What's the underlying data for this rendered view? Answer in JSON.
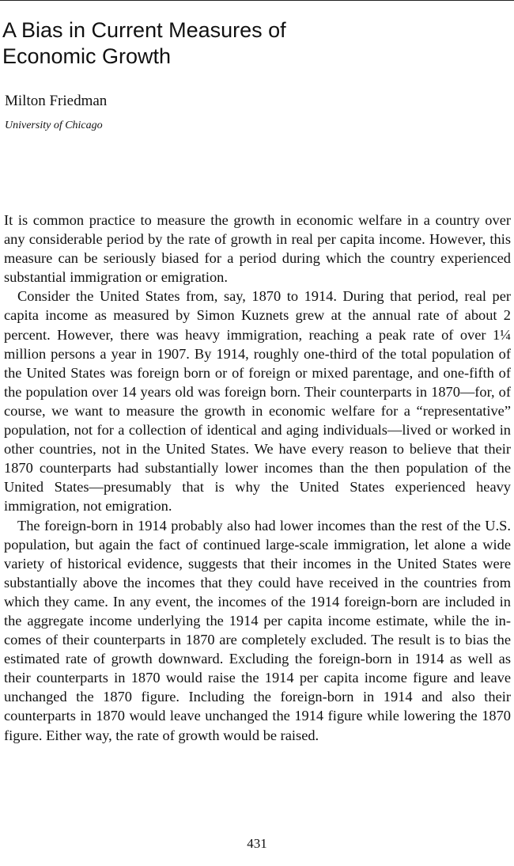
{
  "article": {
    "title_line1": "A Bias in Current Measures of",
    "title_line2": "Economic Growth",
    "author": "Milton Friedman",
    "affiliation": "University of Chicago"
  },
  "paragraphs": [
    "It is common practice to measure the growth in economic welfare in a country over any considerable period by the rate of growth in real per capita income. However, this measure can be seriously biased for a period during which the country experienced substantial immigration or emigra­tion.",
    "Consider the United States from, say, 1870 to 1914. During that period, real per capita income as measured by Simon Kuznets grew at the annual rate of about 2 percent. However, there was heavy immigration, reaching a peak rate of over 1¼ million persons a year in 1907. By 1914, roughly one-third of the total population of the United States was foreign born or of foreign or mixed parentage, and one-fifth of the population over 14 years old was foreign born. Their counterparts in 1870—for, of course, we want to measure the growth in economic welfare for a “representative” population, not for a collection of identical and aging individuals—lived or worked in other countries, not in the United States. We have every reason to believe that their 1870 counterparts had substantially lower incomes than the then population of the United States—presumably that is why the United States experienced heavy immigration, not emigration.",
    "The foreign-born in 1914 probably also had lower incomes than the rest of the U.S. population, but again the fact of continued large-scale immi­gration, let alone a wide variety of historical evidence, suggests that their incomes in the United States were substantially above the incomes that they could have received in the countries from which they came. In any event, the incomes of the 1914 foreign-born are included in the aggregate income underlying the 1914 per capita income estimate, while the in­comes of their counterparts in 1870 are completely excluded. The result is to bias the estimated rate of growth downward. Excluding the foreign-born in 1914 as well as their counterparts in 1870 would raise the 1914 per capita income figure and leave unchanged the 1870 figure. Including the foreign-born in 1914 and also their counterparts in 1870 would leave unchanged the 1914 figure while lowering the 1870 figure. Either way, the rate of growth would be raised."
  ],
  "page_number": "431"
}
